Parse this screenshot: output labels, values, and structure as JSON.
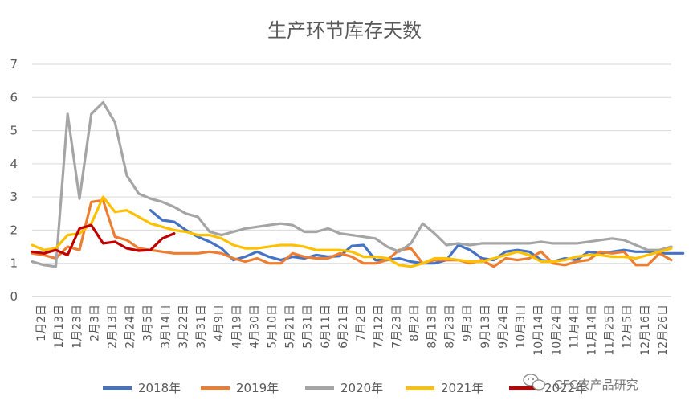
{
  "chart_data": {
    "type": "line",
    "title": "生产环节库存天数",
    "ylim": [
      0,
      7
    ],
    "yticks": [
      "0",
      "1",
      "2",
      "3",
      "4",
      "5",
      "6",
      "7"
    ],
    "grid": true,
    "legend_position": "bottom",
    "x_labels": [
      "1月2日",
      "1月13日",
      "1月23日",
      "2月3日",
      "2月13日",
      "2月24日",
      "3月5日",
      "3月14日",
      "3月22日",
      "3月31日",
      "4月9日",
      "4月19日",
      "4月30日",
      "5月10日",
      "5月21日",
      "5月31日",
      "6月11日",
      "6月21日",
      "7月2日",
      "7月12日",
      "7月23日",
      "8月2日",
      "8月13日",
      "8月23日",
      "9月3日",
      "9月13日",
      "9月24日",
      "10月3日",
      "10月14日",
      "10月24日",
      "11月4日",
      "11月14日",
      "11月25日",
      "12月5日",
      "12月16日",
      "12月26日"
    ],
    "series": [
      {
        "name": "2018年",
        "color": "#4472C4",
        "start": 10,
        "values": [
          2.6,
          2.3,
          2.25,
          2.0,
          1.8,
          1.65,
          1.45,
          1.1,
          1.2,
          1.35,
          1.2,
          1.1,
          1.2,
          1.15,
          1.25,
          1.2,
          1.22,
          1.52,
          1.55,
          1.1,
          1.1,
          1.15,
          1.05,
          1.0,
          1.0,
          1.1,
          1.55,
          1.4,
          1.15,
          1.1,
          1.35,
          1.4,
          1.35,
          1.1,
          1.05,
          1.15,
          1.1,
          1.35,
          1.3,
          1.35,
          1.4,
          1.35,
          1.35,
          1.3,
          1.3,
          1.3
        ]
      },
      {
        "name": "2019年",
        "color": "#ED7D31",
        "start": 0,
        "values": [
          1.3,
          1.25,
          1.15,
          1.5,
          1.4,
          2.85,
          2.9,
          1.8,
          1.7,
          1.45,
          1.4,
          1.35,
          1.3,
          1.3,
          1.3,
          1.35,
          1.3,
          1.15,
          1.05,
          1.15,
          1.0,
          1.0,
          1.3,
          1.2,
          1.15,
          1.15,
          1.3,
          1.2,
          1.0,
          1.0,
          1.1,
          1.4,
          1.45,
          1.0,
          1.1,
          1.1,
          1.1,
          1.0,
          1.1,
          0.9,
          1.15,
          1.1,
          1.15,
          1.35,
          1.0,
          0.95,
          1.05,
          1.1,
          1.35,
          1.3,
          1.35,
          0.95,
          0.95,
          1.3,
          1.1
        ]
      },
      {
        "name": "2020年",
        "color": "#A5A5A5",
        "start": 0,
        "values": [
          1.05,
          0.95,
          0.9,
          5.5,
          2.95,
          5.5,
          5.85,
          5.25,
          3.65,
          3.1,
          2.95,
          2.85,
          2.7,
          2.5,
          2.4,
          1.95,
          1.85,
          1.95,
          2.05,
          2.1,
          2.15,
          2.2,
          2.15,
          1.95,
          1.95,
          2.05,
          1.9,
          1.85,
          1.8,
          1.75,
          1.5,
          1.35,
          1.6,
          2.2,
          1.9,
          1.55,
          1.6,
          1.55,
          1.6,
          1.6,
          1.6,
          1.6,
          1.6,
          1.65,
          1.6,
          1.6,
          1.6,
          1.65,
          1.7,
          1.75,
          1.7,
          1.55,
          1.4,
          1.4,
          1.5
        ]
      },
      {
        "name": "2021年",
        "color": "#FFC000",
        "start": 0,
        "values": [
          1.55,
          1.4,
          1.45,
          1.85,
          1.9,
          2.2,
          3.0,
          2.55,
          2.6,
          2.4,
          2.2,
          2.1,
          2.0,
          1.95,
          1.85,
          1.85,
          1.75,
          1.55,
          1.45,
          1.45,
          1.5,
          1.55,
          1.55,
          1.5,
          1.4,
          1.4,
          1.4,
          1.35,
          1.2,
          1.2,
          1.15,
          0.95,
          0.9,
          1.0,
          1.15,
          1.15,
          1.1,
          1.05,
          1.05,
          1.15,
          1.25,
          1.35,
          1.25,
          1.05,
          1.05,
          1.1,
          1.2,
          1.25,
          1.25,
          1.2,
          1.2,
          1.15,
          1.25,
          1.35,
          1.45
        ]
      },
      {
        "name": "2022年",
        "color": "#C00000",
        "start": 0,
        "values": [
          1.35,
          1.3,
          1.4,
          1.25,
          2.05,
          2.15,
          1.6,
          1.65,
          1.45,
          1.38,
          1.4,
          1.75,
          1.9
        ]
      }
    ]
  },
  "watermark": {
    "text": "CFC农产品研究",
    "icon": "wechat-icon"
  }
}
